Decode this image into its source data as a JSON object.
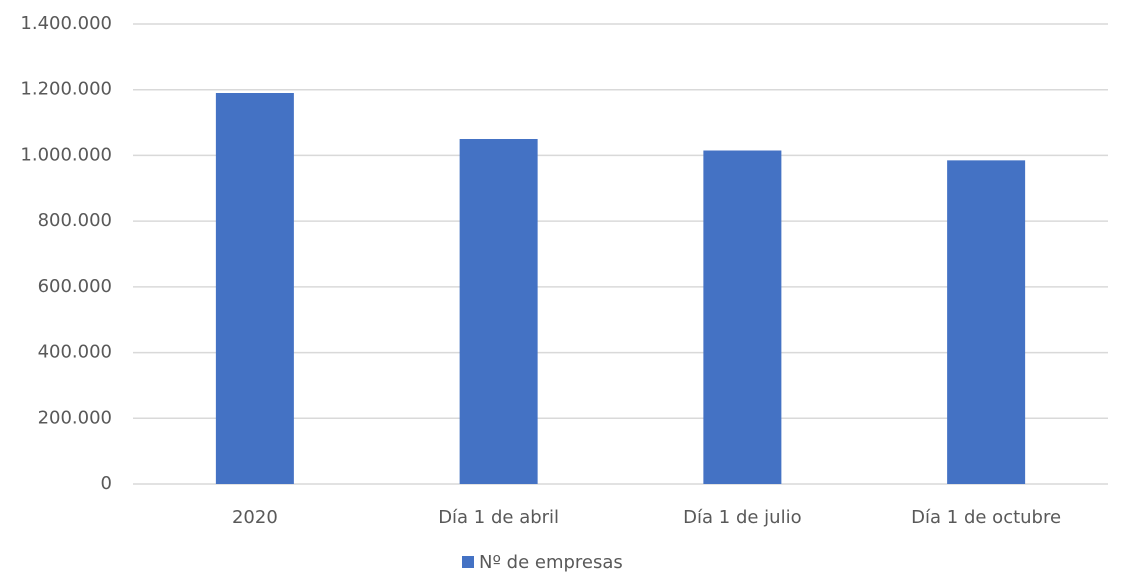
{
  "chart_data": {
    "type": "bar",
    "categories": [
      "2020",
      "Día 1 de abril",
      "Día 1 de julio",
      "Día 1 de octubre"
    ],
    "series": [
      {
        "name": "Nº de empresas",
        "color": "#4472c4",
        "values": [
          1190000,
          1050000,
          1015000,
          985000
        ]
      }
    ],
    "ylim": [
      0,
      1400000
    ],
    "yticks": [
      0,
      {
        "value": 200000,
        "label": "200.000"
      },
      {
        "value": 400000,
        "label": "400.000"
      },
      {
        "value": 600000,
        "label": "600.000"
      },
      {
        "value": 800000,
        "label": "800.000"
      },
      {
        "value": 1000000,
        "label": "1.000.000"
      },
      {
        "value": 1200000,
        "label": "1.200.000"
      },
      {
        "value": 1400000,
        "label": "1.400.000"
      }
    ],
    "grid": true,
    "legend": "bottom"
  }
}
